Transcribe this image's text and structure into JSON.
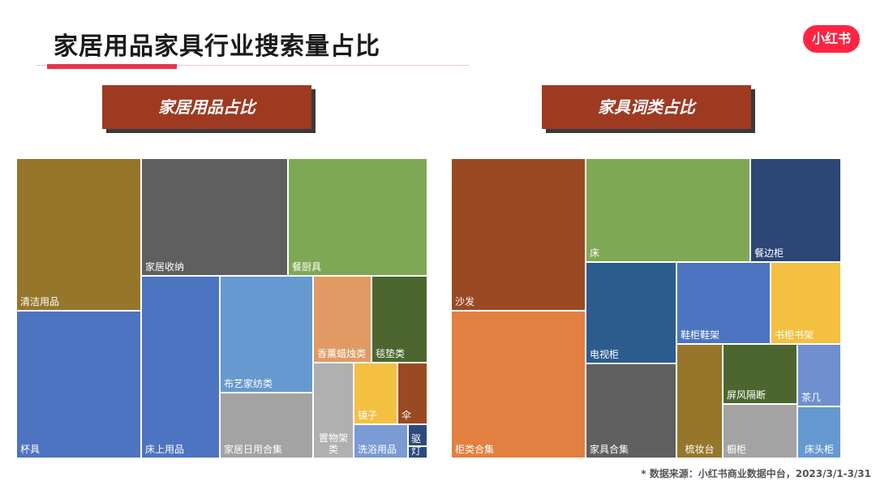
{
  "header": {
    "title": "家居用品家具行业搜索量占比",
    "logo_text": "小红书"
  },
  "footnote": "* 数据来源：小红书商业数据中台，2023/3/1-3/31",
  "chart_data": [
    {
      "type": "treemap",
      "title": "家居用品占比",
      "items": [
        {
          "label": "清洁用品",
          "color": "#95762a"
        },
        {
          "label": "杯具",
          "color": "#4d74c0"
        },
        {
          "label": "家居收纳",
          "color": "#5f5f5f"
        },
        {
          "label": "床上用品",
          "color": "#4d74c0"
        },
        {
          "label": "餐厨具",
          "color": "#7fa854"
        },
        {
          "label": "布艺家纺类",
          "color": "#6699d0"
        },
        {
          "label": "家居日用合集",
          "color": "#a3a3a3"
        },
        {
          "label": "香薰蜡烛类",
          "color": "#e19a64"
        },
        {
          "label": "毯垫类",
          "color": "#4d6630"
        },
        {
          "label": "置物架类",
          "color": "#b0b0b0"
        },
        {
          "label": "镜子",
          "color": "#f3c042"
        },
        {
          "label": "伞",
          "color": "#9a4a22"
        },
        {
          "label": "洗浴用品",
          "color": "#7a9bd3"
        },
        {
          "label": "驱",
          "color": "#2e4a7d"
        },
        {
          "label": "灯",
          "color": "#2e4a7d"
        }
      ]
    },
    {
      "type": "treemap",
      "title": "家具词类占比",
      "items": [
        {
          "label": "沙发",
          "color": "#9a4a22"
        },
        {
          "label": "柜类合集",
          "color": "#e18040"
        },
        {
          "label": "床",
          "color": "#7fa854"
        },
        {
          "label": "餐边柜",
          "color": "#2c4675"
        },
        {
          "label": "电视柜",
          "color": "#2c5b8e"
        },
        {
          "label": "家具合集",
          "color": "#5f5f5f"
        },
        {
          "label": "鞋柜鞋架",
          "color": "#4d74c0"
        },
        {
          "label": "书柜书架",
          "color": "#f3c042"
        },
        {
          "label": "梳妆台",
          "color": "#95762a"
        },
        {
          "label": "屏风隔断",
          "color": "#4d6630"
        },
        {
          "label": "茶几",
          "color": "#6f8fcf"
        },
        {
          "label": "橱柜",
          "color": "#a3a3a3"
        },
        {
          "label": "床头柜",
          "color": "#6699d0"
        }
      ]
    }
  ]
}
